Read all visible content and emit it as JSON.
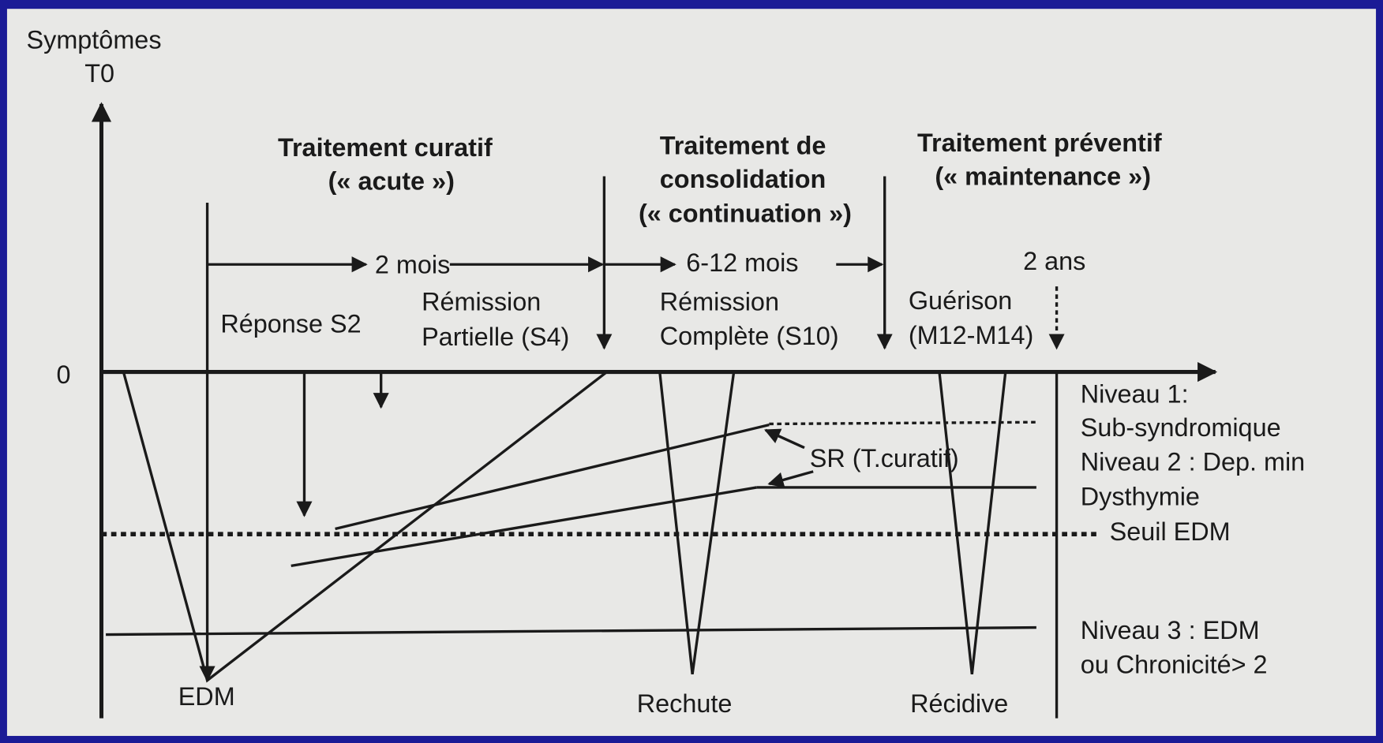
{
  "axis": {
    "y_label": "Symptômes",
    "t0": "T0",
    "origin": "0"
  },
  "phases": [
    {
      "lines": [
        "Traitement curatif",
        "(« acute »)"
      ]
    },
    {
      "lines": [
        "Traitement de",
        "consolidation",
        "(« continuation »)"
      ]
    },
    {
      "lines": [
        "Traitement préventif",
        "(« maintenance »)"
      ]
    }
  ],
  "durations": [
    "2 mois",
    "6-12 mois",
    "2 ans"
  ],
  "milestones": [
    {
      "lines": [
        "Réponse S2"
      ]
    },
    {
      "lines": [
        "Rémission",
        "Partielle (S4)"
      ]
    },
    {
      "lines": [
        "Rémission",
        "Complète (S10)"
      ]
    },
    {
      "lines": [
        "Guérison",
        "(M12-M14)"
      ]
    }
  ],
  "levels": [
    "Niveau 1:",
    "Sub-syndromique",
    "Niveau 2 : Dep. min",
    "Dysthymie",
    "Seuil EDM",
    "Niveau 3 : EDM",
    "ou Chronicité> 2"
  ],
  "annotation": "SR (T.curatif)",
  "events": [
    "EDM",
    "Rechute",
    "Récidive"
  ]
}
